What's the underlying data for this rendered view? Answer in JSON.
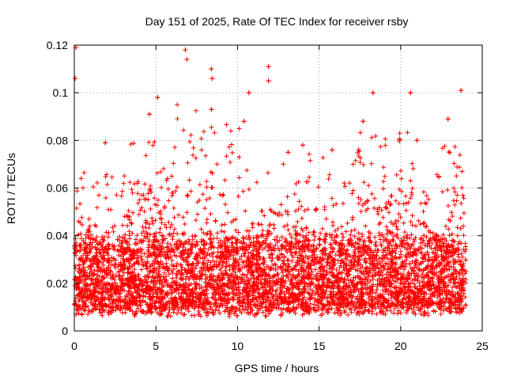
{
  "chart_data": {
    "type": "scatter",
    "title": "Day 151 of 2025, Rate Of TEC Index for receiver rsby",
    "xlabel": "GPS time / hours",
    "ylabel": "ROTI / TECUs",
    "xlim": [
      0,
      25
    ],
    "ylim": [
      0,
      0.12
    ],
    "xticks": [
      0,
      5,
      10,
      15,
      20,
      25
    ],
    "yticks": [
      0,
      0.02,
      0.04,
      0.06,
      0.08,
      0.1,
      0.12
    ],
    "xtick_labels": [
      "0",
      "5",
      "10",
      "15",
      "20",
      "25"
    ],
    "ytick_labels": [
      "0",
      "0.02",
      "0.04",
      "0.06",
      "0.08",
      "0.1",
      "0.12"
    ],
    "grid": true,
    "marker": "+",
    "color": "#ff0000",
    "series": [
      {
        "name": "ROTI",
        "summary": "dense band of points between ~0.005 and ~0.06 TECU/s across 0-24 h, with spikes to ~0.12",
        "peaks": [
          {
            "x": 0.1,
            "y": 0.119
          },
          {
            "x": 0.05,
            "y": 0.106
          },
          {
            "x": 6.8,
            "y": 0.118
          },
          {
            "x": 6.9,
            "y": 0.114
          },
          {
            "x": 8.4,
            "y": 0.11
          },
          {
            "x": 8.45,
            "y": 0.106
          },
          {
            "x": 11.9,
            "y": 0.111
          },
          {
            "x": 11.9,
            "y": 0.105
          },
          {
            "x": 10.7,
            "y": 0.1
          },
          {
            "x": 5.1,
            "y": 0.098
          },
          {
            "x": 18.3,
            "y": 0.1
          },
          {
            "x": 20.6,
            "y": 0.1
          },
          {
            "x": 23.7,
            "y": 0.101
          },
          {
            "x": 8.4,
            "y": 0.093
          },
          {
            "x": 4.6,
            "y": 0.091
          },
          {
            "x": 10.4,
            "y": 0.088
          },
          {
            "x": 22.9,
            "y": 0.089
          },
          {
            "x": 17.7,
            "y": 0.088
          },
          {
            "x": 1.9,
            "y": 0.079
          },
          {
            "x": 15.8,
            "y": 0.076
          },
          {
            "x": 14.0,
            "y": 0.078
          },
          {
            "x": 13.1,
            "y": 0.075
          },
          {
            "x": 21.0,
            "y": 0.08
          }
        ]
      }
    ]
  }
}
